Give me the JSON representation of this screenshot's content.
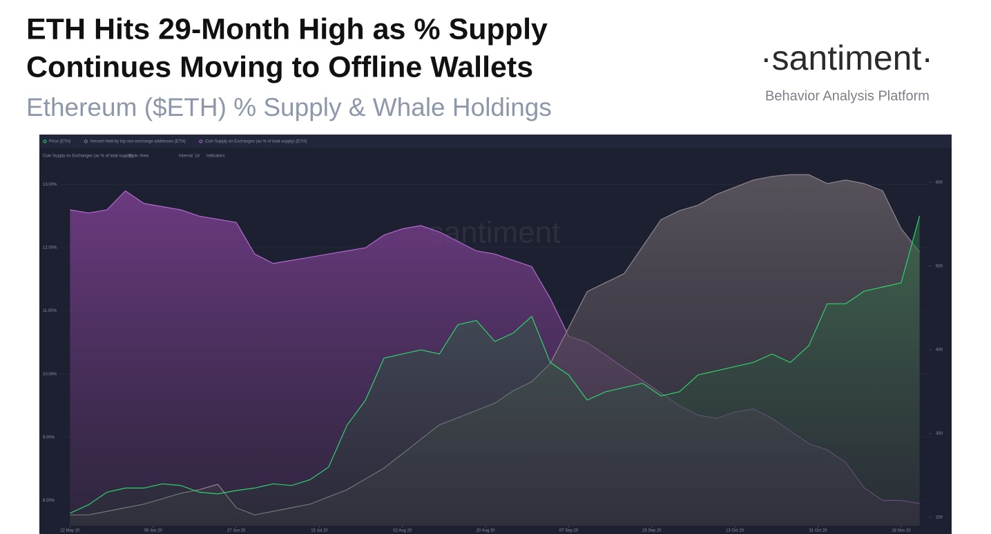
{
  "header": {
    "title_lines": [
      "ETH Hits 29-Month High as % Supply",
      "Continues Moving to Offline Wallets"
    ],
    "subtitle": "Ethereum ($ETH) % Supply & Whale Holdings",
    "brand": "·santiment·",
    "tagline": "Behavior Analysis Platform"
  },
  "toolbar": {
    "metric": "Coin Supply on Exchanges (as % of total supply):",
    "style": "Style: Area",
    "interval": "Interval: 1d",
    "indicators": "Indicators:"
  },
  "chart_data": {
    "type": "area",
    "watermark": "santiment",
    "x": [
      "2020-05-22",
      "2020-05-26",
      "2020-05-30",
      "2020-06-03",
      "2020-06-07",
      "2020-06-11",
      "2020-06-15",
      "2020-06-19",
      "2020-06-23",
      "2020-06-27",
      "2020-07-01",
      "2020-07-05",
      "2020-07-09",
      "2020-07-13",
      "2020-07-17",
      "2020-07-21",
      "2020-07-25",
      "2020-07-29",
      "2020-08-02",
      "2020-08-06",
      "2020-08-10",
      "2020-08-14",
      "2020-08-18",
      "2020-08-22",
      "2020-08-26",
      "2020-08-30",
      "2020-09-03",
      "2020-09-07",
      "2020-09-11",
      "2020-09-15",
      "2020-09-19",
      "2020-09-23",
      "2020-09-27",
      "2020-10-01",
      "2020-10-05",
      "2020-10-09",
      "2020-10-13",
      "2020-10-17",
      "2020-10-21",
      "2020-10-25",
      "2020-10-29",
      "2020-11-02",
      "2020-11-06",
      "2020-11-10",
      "2020-11-14",
      "2020-11-18",
      "2020-11-22"
    ],
    "series": [
      {
        "name": "Coin Supply on Exchanges (as % of total supply) (ETH)",
        "color": "#b36bd0",
        "axis": "y",
        "values": [
          12.6,
          12.55,
          12.6,
          12.9,
          12.7,
          12.65,
          12.6,
          12.5,
          12.45,
          12.4,
          11.9,
          11.75,
          11.8,
          11.85,
          11.9,
          11.95,
          12.0,
          12.2,
          12.3,
          12.35,
          12.25,
          12.1,
          11.95,
          11.9,
          11.8,
          11.7,
          11.2,
          10.6,
          10.5,
          10.3,
          10.1,
          9.9,
          9.7,
          9.5,
          9.35,
          9.3,
          9.4,
          9.45,
          9.3,
          9.1,
          8.9,
          8.8,
          8.6,
          8.2,
          8.0,
          8.0,
          7.95
        ]
      },
      {
        "name": "Amount held by top non-exchange addresses (ETH)",
        "color": "#8e8690",
        "axis": "y3",
        "values": [
          40600000,
          40600000,
          40800000,
          41000000,
          41200000,
          41500000,
          41800000,
          42000000,
          42300000,
          41000000,
          40600000,
          40800000,
          41000000,
          41200000,
          41600000,
          42000000,
          42600000,
          43200000,
          44000000,
          44800000,
          45600000,
          46000000,
          46400000,
          46800000,
          47500000,
          48000000,
          49000000,
          51000000,
          53000000,
          53500000,
          54000000,
          55500000,
          57000000,
          57500000,
          57800000,
          58400000,
          58800000,
          59200000,
          59400000,
          59500000,
          59500000,
          59000000,
          59200000,
          59000000,
          58600000,
          56500000,
          55200000
        ]
      },
      {
        "name": "Price (ETH)",
        "color": "#2fd36b",
        "axis": "y2",
        "values": [
          205,
          215,
          230,
          235,
          235,
          240,
          238,
          230,
          228,
          232,
          235,
          240,
          238,
          245,
          260,
          310,
          340,
          390,
          395,
          400,
          395,
          430,
          435,
          410,
          420,
          440,
          385,
          370,
          340,
          350,
          355,
          360,
          345,
          350,
          370,
          375,
          380,
          385,
          395,
          385,
          405,
          455,
          455,
          470,
          475,
          480,
          560
        ]
      }
    ],
    "ylim": [
      7.6,
      13.3
    ],
    "yticks": [
      {
        "value": 8,
        "label": "8.00%"
      },
      {
        "value": 9,
        "label": "9.00%"
      },
      {
        "value": 10,
        "label": "10.00%"
      },
      {
        "value": 11,
        "label": "11.00%"
      },
      {
        "value": 12,
        "label": "12.00%"
      },
      {
        "value": 13,
        "label": "13.00%"
      }
    ],
    "y2lim": [
      190,
      620
    ],
    "y2ticks": [
      200,
      300,
      400,
      500,
      600
    ],
    "y3lim": [
      40000000,
      60000000
    ],
    "xlim": [
      "2020-05-20",
      "2020-11-24"
    ],
    "xticks": [
      {
        "value": "2020-05-22",
        "label": "22 May 20"
      },
      {
        "value": "2020-06-09",
        "label": "09 Jun 20"
      },
      {
        "value": "2020-06-27",
        "label": "27 Jun 20"
      },
      {
        "value": "2020-07-15",
        "label": "15 Jul 20"
      },
      {
        "value": "2020-08-02",
        "label": "02 Aug 20"
      },
      {
        "value": "2020-08-20",
        "label": "20 Aug 20"
      },
      {
        "value": "2020-09-07",
        "label": "07 Sep 20"
      },
      {
        "value": "2020-09-25",
        "label": "25 Sep 20"
      },
      {
        "value": "2020-10-13",
        "label": "13 Oct 20"
      },
      {
        "value": "2020-10-31",
        "label": "31 Oct 20"
      },
      {
        "value": "2020-11-18",
        "label": "18 Nov 20"
      }
    ]
  }
}
